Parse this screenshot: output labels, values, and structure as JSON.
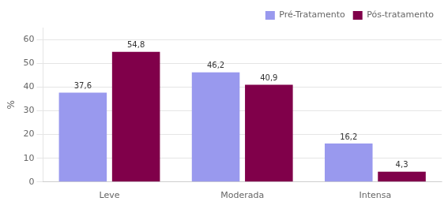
{
  "chart_data": {
    "type": "bar",
    "categories": [
      "Leve",
      "Moderada",
      "Intensa"
    ],
    "series": [
      {
        "name": "Pré-Tratamento",
        "color": "#9999ee",
        "values": [
          37.6,
          46.2,
          16.2
        ],
        "value_labels": [
          "37,6",
          "46,2",
          "16,2"
        ]
      },
      {
        "name": "Pós-tratamento",
        "color": "#80004a",
        "values": [
          54.8,
          40.9,
          4.3
        ],
        "value_labels": [
          "54,8",
          "40,9",
          "4,3"
        ]
      }
    ],
    "y_label": "%",
    "ylim": [
      0,
      65
    ],
    "yticks": [
      0,
      10,
      20,
      30,
      40,
      50,
      60
    ],
    "grid": true,
    "legend": "upper right",
    "data_labels": true
  }
}
